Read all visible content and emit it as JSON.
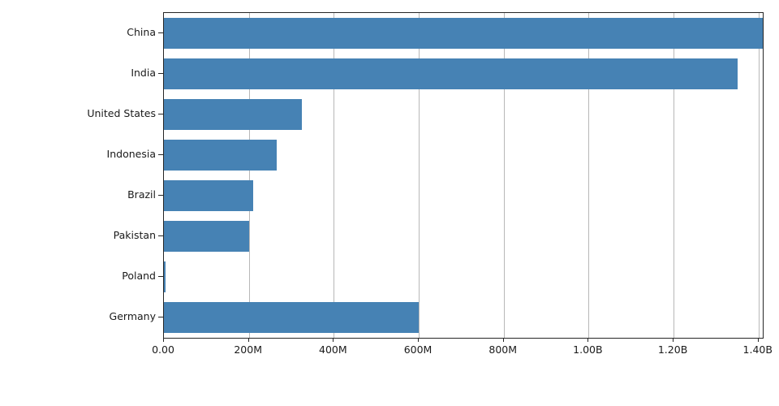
{
  "chart_data": {
    "type": "bar",
    "orientation": "horizontal",
    "title": "",
    "xlabel": "",
    "ylabel": "",
    "grid": true,
    "legend": false,
    "bar_color": "#4682B4",
    "axis_color": "#262626",
    "grid_color": "#b8b8b8",
    "xlim": [
      0,
      1410000000
    ],
    "categories": [
      "China",
      "India",
      "United States",
      "Indonesia",
      "Brazil",
      "Pakistan",
      "Poland",
      "Germany"
    ],
    "values": [
      1410000000,
      1350000000,
      325000000,
      265000000,
      210000000,
      200000000,
      4000000,
      600000000
    ],
    "x_ticks": [
      {
        "value": 0,
        "label": "0.00"
      },
      {
        "value": 200000000,
        "label": "200M"
      },
      {
        "value": 400000000,
        "label": "400M"
      },
      {
        "value": 600000000,
        "label": "600M"
      },
      {
        "value": 800000000,
        "label": "800M"
      },
      {
        "value": 1000000000,
        "label": "1.00B"
      },
      {
        "value": 1200000000,
        "label": "1.20B"
      },
      {
        "value": 1400000000,
        "label": "1.40B"
      }
    ]
  }
}
